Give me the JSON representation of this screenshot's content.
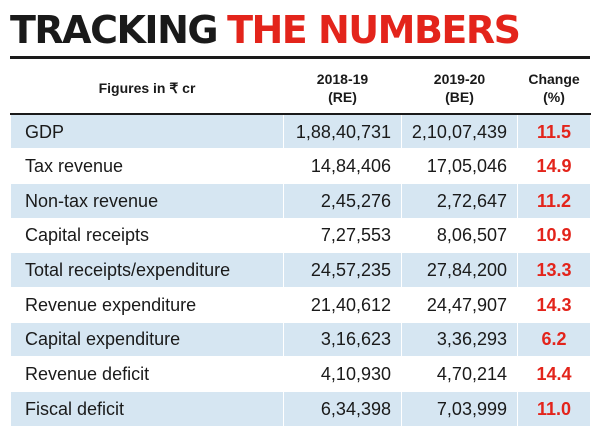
{
  "headline": {
    "part1": "TRACKING",
    "part2": "THE NUMBERS"
  },
  "accent_color": "#e3241b",
  "row_tint": "#d6e6f2",
  "chart_data": {
    "type": "table",
    "columns": [
      {
        "line1": "Figures in ₹ cr",
        "line2": ""
      },
      {
        "line1": "2018-19",
        "line2": "(RE)"
      },
      {
        "line1": "2019-20",
        "line2": "(BE)"
      },
      {
        "line1": "Change",
        "line2": "(%)"
      }
    ],
    "rows": [
      {
        "label": "GDP",
        "re_2018_19": "1,88,40,731",
        "be_2019_20": "2,10,07,439",
        "change": "11.5"
      },
      {
        "label": "Tax revenue",
        "re_2018_19": "14,84,406",
        "be_2019_20": "17,05,046",
        "change": "14.9"
      },
      {
        "label": "Non-tax revenue",
        "re_2018_19": "2,45,276",
        "be_2019_20": "2,72,647",
        "change": "11.2"
      },
      {
        "label": "Capital receipts",
        "re_2018_19": "7,27,553",
        "be_2019_20": "8,06,507",
        "change": "10.9"
      },
      {
        "label": "Total receipts/expenditure",
        "re_2018_19": "24,57,235",
        "be_2019_20": "27,84,200",
        "change": "13.3"
      },
      {
        "label": "Revenue expenditure",
        "re_2018_19": "21,40,612",
        "be_2019_20": "24,47,907",
        "change": "14.3"
      },
      {
        "label": "Capital expenditure",
        "re_2018_19": "3,16,623",
        "be_2019_20": "3,36,293",
        "change": "6.2"
      },
      {
        "label": "Revenue deficit",
        "re_2018_19": "4,10,930",
        "be_2019_20": "4,70,214",
        "change": "14.4"
      },
      {
        "label": "Fiscal deficit",
        "re_2018_19": "6,34,398",
        "be_2019_20": "7,03,999",
        "change": "11.0"
      }
    ]
  }
}
